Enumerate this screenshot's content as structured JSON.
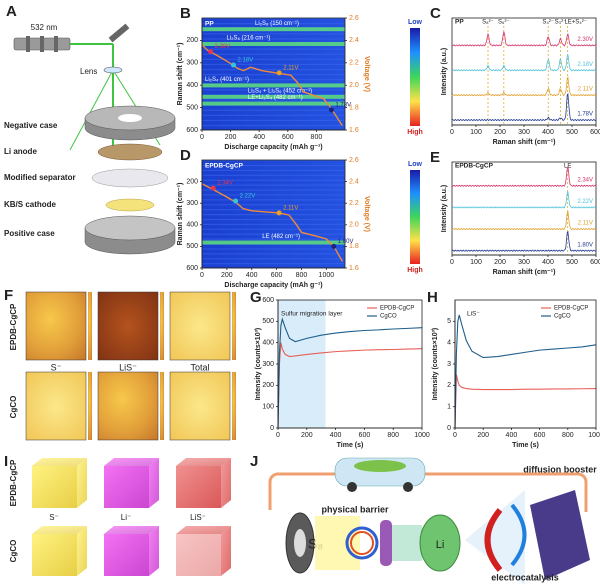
{
  "panels": {
    "A": {
      "label": "A",
      "laser": "532 nm",
      "lens": "Lens",
      "parts": [
        "Negative case",
        "Li anode",
        "Modified separator",
        "KB/S cathode",
        "Positive case"
      ]
    },
    "B": {
      "label": "B",
      "sample": "PP",
      "xlabel": "Discharge capacity (mAh g⁻¹)",
      "ylabel": "Raman shift (cm⁻¹)",
      "y2label": "Voltage (V)",
      "xlim": [
        0,
        1000
      ],
      "xticks": [
        0,
        200,
        400,
        600,
        800
      ],
      "ylim": [
        100,
        600
      ],
      "yticks": [
        200,
        300,
        400,
        500,
        600
      ],
      "y2lim": [
        1.6,
        2.6
      ],
      "y2ticks": [
        1.6,
        1.8,
        {
          "value": 2,
          "label": "2.0"
        },
        2.2,
        2.4,
        2.6
      ],
      "colorbar": [
        "Low",
        "High"
      ],
      "bands": [
        {
          "label": "Li₂S₈ (150 cm⁻¹)",
          "shift": 150
        },
        {
          "label": "Li₂S₆ (216 cm⁻¹)",
          "shift": 216
        },
        {
          "label": "Li₂S₄ (401 cm⁻¹)",
          "shift": 401
        },
        {
          "label": "Li₂S₄ + Li₂S₆ (452 cm⁻¹)",
          "shift": 452
        },
        {
          "label": "LE+Li₂S₄ (482 cm⁻¹)",
          "shift": 482
        }
      ],
      "capacity": [
        0,
        40,
        100,
        180,
        250,
        290,
        340,
        420,
        520,
        620,
        670,
        710,
        780,
        850,
        900,
        940,
        980
      ],
      "voltage": [
        2.36,
        2.31,
        2.27,
        2.21,
        2.15,
        2.13,
        2.16,
        2.13,
        2.11,
        2.09,
        2.02,
        1.94,
        1.91,
        1.88,
        1.8,
        1.72,
        1.64
      ],
      "points": [
        {
          "label": "2.30V",
          "x": 60,
          "v": 2.3,
          "color": "#e8364f"
        },
        {
          "label": "2.18V",
          "x": 220,
          "v": 2.18,
          "color": "#36c6d8"
        },
        {
          "label": "2.11V",
          "x": 540,
          "v": 2.11,
          "color": "#f0a020"
        },
        {
          "label": "1.78V",
          "x": 905,
          "v": 1.78,
          "color": "#1a237e"
        }
      ]
    },
    "C": {
      "label": "C",
      "sample": "PP",
      "xlabel": "Raman shift (cm⁻¹)",
      "ylabel": "Intensity (a.u.)",
      "xlim": [
        0,
        600
      ],
      "xticks": [
        0,
        100,
        200,
        300,
        400,
        500,
        600
      ],
      "peaks": [
        {
          "label": "S₈²⁻",
          "shift": 150
        },
        {
          "label": "S₆²⁻",
          "shift": 216
        },
        {
          "label": "S₄²⁻",
          "shift": 401
        },
        {
          "label": "S₃²⁻",
          "shift": 452
        },
        {
          "label": "LE+S₄²⁻",
          "shift": 482
        }
      ],
      "series": [
        {
          "name": "2.30V",
          "color": "#d6336c",
          "peak_heights": [
            0.5,
            0.6,
            0.4,
            0.3,
            0.5
          ]
        },
        {
          "name": "2.18V",
          "color": "#4fc3d9",
          "peak_heights": [
            0.2,
            0.2,
            0.5,
            0.5,
            0.7
          ]
        },
        {
          "name": "2.11V",
          "color": "#e0a030",
          "peak_heights": [
            0.1,
            0.1,
            0.3,
            0.3,
            0.8
          ]
        },
        {
          "name": "1.78V",
          "color": "#1f3a93",
          "peak_heights": [
            0,
            0,
            0.1,
            0.1,
            1.2
          ]
        }
      ]
    },
    "D": {
      "label": "D",
      "sample": "EPDB-CgCP",
      "xlabel": "Discharge capacity (mAh g⁻¹)",
      "ylabel": "Raman shift (cm⁻¹)",
      "y2label": "Voltage (V)",
      "xlim": [
        0,
        1150
      ],
      "xticks": [
        0,
        200,
        400,
        600,
        800,
        1000
      ],
      "ylim": [
        100,
        600
      ],
      "yticks": [
        200,
        300,
        400,
        500,
        600
      ],
      "y2lim": [
        1.6,
        2.6
      ],
      "y2ticks": [
        1.6,
        1.8,
        {
          "value": 2,
          "label": "2.0"
        },
        2.2,
        2.4,
        2.6
      ],
      "colorbar": [
        "Low",
        "High"
      ],
      "bands": [
        {
          "label": "LE (482 cm⁻¹)",
          "shift": 482
        }
      ],
      "capacity": [
        0,
        50,
        100,
        180,
        270,
        330,
        400,
        500,
        620,
        700,
        760,
        800,
        900,
        1000,
        1060,
        1100,
        1130
      ],
      "voltage": [
        2.38,
        2.35,
        2.32,
        2.27,
        2.21,
        2.15,
        2.13,
        2.12,
        2.11,
        2.09,
        2.0,
        1.93,
        1.9,
        1.87,
        1.8,
        1.72,
        1.66
      ],
      "points": [
        {
          "label": "2.34V",
          "x": 90,
          "v": 2.34,
          "color": "#e8364f"
        },
        {
          "label": "2.22V",
          "x": 270,
          "v": 2.22,
          "color": "#36c6d8"
        },
        {
          "label": "2.11V",
          "x": 620,
          "v": 2.11,
          "color": "#f0a020"
        },
        {
          "label": "1.80V",
          "x": 1060,
          "v": 1.8,
          "color": "#1a237e"
        }
      ]
    },
    "E": {
      "label": "E",
      "sample": "EPDB-CgCP",
      "xlabel": "Raman shift (cm⁻¹)",
      "ylabel": "Intensity (a.u.)",
      "xlim": [
        0,
        600
      ],
      "xticks": [
        0,
        100,
        200,
        300,
        400,
        500,
        600
      ],
      "peaks": [
        {
          "label": "LE",
          "shift": 482
        }
      ],
      "series": [
        {
          "name": "2.34V",
          "color": "#d6336c",
          "peak_heights": [
            1
          ]
        },
        {
          "name": "2.22V",
          "color": "#4fc3d9",
          "peak_heights": [
            0.8
          ]
        },
        {
          "name": "2.11V",
          "color": "#e0a030",
          "peak_heights": [
            0.9
          ]
        },
        {
          "name": "1.80V",
          "color": "#1f3a93",
          "peak_heights": [
            1
          ]
        }
      ]
    },
    "F": {
      "label": "F",
      "rows": [
        "EPDB-CgCP",
        "CgCO"
      ],
      "cols": [
        "S⁻",
        "LiS⁻",
        "Total"
      ]
    },
    "G": {
      "label": "G",
      "xlabel": "Time (s)",
      "ylabel": "Intensity (counts×10³)",
      "xlim": [
        0,
        1000
      ],
      "xticks": [
        0,
        200,
        400,
        600,
        800,
        1000
      ],
      "ylim": [
        0,
        600
      ],
      "yticks": [
        0,
        100,
        200,
        300,
        400,
        500,
        600
      ],
      "annotation": "Sulfur migration layer",
      "shade": [
        0,
        330
      ],
      "x": [
        0,
        10,
        20,
        30,
        50,
        80,
        120,
        200,
        300,
        400,
        500,
        600,
        700,
        800,
        900,
        1000
      ],
      "series": [
        {
          "name": "EPDB-CgCP",
          "color": "#e8605a",
          "values": [
            0,
            300,
            400,
            370,
            345,
            335,
            338,
            345,
            352,
            358,
            362,
            365,
            367,
            368,
            370,
            372
          ]
        },
        {
          "name": "CgCO",
          "color": "#1f5f8b",
          "values": [
            0,
            350,
            480,
            510,
            470,
            420,
            405,
            420,
            435,
            445,
            452,
            457,
            460,
            464,
            467,
            470
          ]
        }
      ]
    },
    "H": {
      "label": "H",
      "xlabel": "Time (s)",
      "ylabel": "Intensity (counts×10³)",
      "xlim": [
        0,
        1000
      ],
      "xticks": [
        0,
        200,
        400,
        600,
        800,
        1000
      ],
      "ylim": [
        0,
        6
      ],
      "yticks": [
        0,
        1,
        2,
        3,
        4,
        5
      ],
      "annotation": "LiS⁻",
      "x": [
        0,
        10,
        20,
        30,
        50,
        80,
        120,
        200,
        300,
        400,
        500,
        600,
        700,
        800,
        900,
        1000
      ],
      "series": [
        {
          "name": "EPDB-CgCP",
          "color": "#e8605a",
          "values": [
            0,
            2.5,
            2.2,
            2.0,
            1.9,
            1.85,
            1.82,
            1.8,
            1.8,
            1.8,
            1.82,
            1.82,
            1.83,
            1.83,
            1.84,
            1.85
          ]
        },
        {
          "name": "CgCO",
          "color": "#1f5f8b",
          "values": [
            0,
            3.5,
            5.0,
            5.3,
            4.8,
            4.1,
            3.6,
            3.3,
            3.35,
            3.45,
            3.55,
            3.65,
            3.7,
            3.75,
            3.8,
            3.9
          ]
        }
      ]
    },
    "I": {
      "label": "I",
      "rows": [
        "EPDB-CgCP",
        "CgCO"
      ],
      "cols": [
        "S⁻",
        "Li⁻",
        "LiS⁻"
      ]
    },
    "J": {
      "label": "J",
      "barrier": "physical barrier",
      "booster": "diffusion booster",
      "catalysis": "electrocatalysis",
      "cathode": "S₈",
      "anode": "Li"
    }
  }
}
